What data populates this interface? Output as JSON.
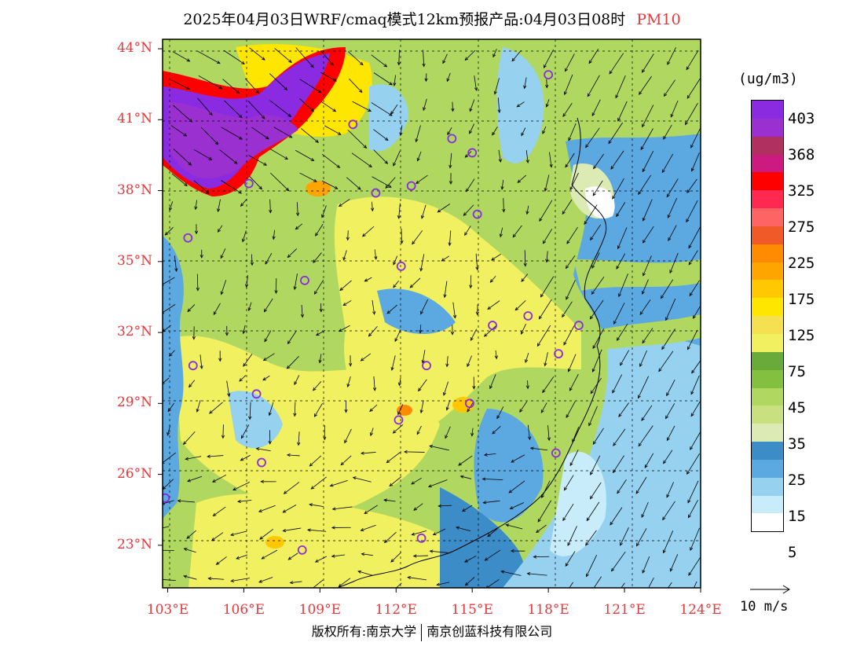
{
  "title": {
    "main": "2025年04月03日WRF/cmaq模式12km预报产品:04月03日08时",
    "pollutant": "PM10"
  },
  "lat_ticks": [
    {
      "value": 44,
      "label": "44°N"
    },
    {
      "value": 41,
      "label": "41°N"
    },
    {
      "value": 38,
      "label": "38°N"
    },
    {
      "value": 35,
      "label": "35°N"
    },
    {
      "value": 32,
      "label": "32°N"
    },
    {
      "value": 29,
      "label": "29°N"
    },
    {
      "value": 26,
      "label": "26°N"
    },
    {
      "value": 23,
      "label": "23°N"
    }
  ],
  "lon_ticks": [
    {
      "value": 103,
      "label": "103°E"
    },
    {
      "value": 106,
      "label": "106°E"
    },
    {
      "value": 109,
      "label": "109°E"
    },
    {
      "value": 112,
      "label": "112°E"
    },
    {
      "value": 115,
      "label": "115°E"
    },
    {
      "value": 118,
      "label": "118°E"
    },
    {
      "value": 121,
      "label": "121°E"
    },
    {
      "value": 124,
      "label": "124°E"
    }
  ],
  "extent": {
    "lon_min": 102.8,
    "lon_max": 124.0,
    "lat_min": 21.2,
    "lat_max": 44.4
  },
  "legend": {
    "units": "(ug/m3)",
    "colors": [
      "#8a2be2",
      "#9b30d0",
      "#b03060",
      "#cc1a80",
      "#ff0000",
      "#ff2850",
      "#ff6464",
      "#f05a28",
      "#ff8c00",
      "#ffa500",
      "#ffc800",
      "#ffe600",
      "#f5e050",
      "#f0f060",
      "#6aaa3a",
      "#84c040",
      "#b0d860",
      "#c8e080",
      "#dceab4",
      "#3c8cc8",
      "#5ca8e0",
      "#96d2f0",
      "#c8ecfa",
      "#ffffff"
    ],
    "labels": [
      "403",
      "368",
      "325",
      "275",
      "225",
      "175",
      "125",
      "75",
      "45",
      "35",
      "25",
      "15",
      "5"
    ]
  },
  "vector_reference": {
    "label": "10 m/s"
  },
  "cities": [
    {
      "lon": 118.0,
      "lat": 42.9
    },
    {
      "lon": 110.3,
      "lat": 40.8
    },
    {
      "lon": 114.2,
      "lat": 40.2
    },
    {
      "lon": 115.0,
      "lat": 39.6
    },
    {
      "lon": 106.2,
      "lat": 38.3
    },
    {
      "lon": 111.2,
      "lat": 37.9
    },
    {
      "lon": 112.6,
      "lat": 38.2
    },
    {
      "lon": 115.2,
      "lat": 37.0
    },
    {
      "lon": 103.8,
      "lat": 36.0
    },
    {
      "lon": 112.2,
      "lat": 34.8
    },
    {
      "lon": 108.4,
      "lat": 34.2
    },
    {
      "lon": 117.2,
      "lat": 32.7
    },
    {
      "lon": 115.8,
      "lat": 32.3
    },
    {
      "lon": 119.2,
      "lat": 32.3
    },
    {
      "lon": 118.4,
      "lat": 31.1
    },
    {
      "lon": 104.0,
      "lat": 30.6
    },
    {
      "lon": 113.2,
      "lat": 30.6
    },
    {
      "lon": 106.5,
      "lat": 29.4
    },
    {
      "lon": 114.9,
      "lat": 29.0
    },
    {
      "lon": 112.1,
      "lat": 28.3
    },
    {
      "lon": 106.7,
      "lat": 26.5
    },
    {
      "lon": 118.3,
      "lat": 26.9
    },
    {
      "lon": 102.9,
      "lat": 25.0
    },
    {
      "lon": 113.0,
      "lat": 23.3
    },
    {
      "lon": 108.3,
      "lat": 22.8
    }
  ],
  "footer": {
    "left": "版权所有:南京大学",
    "right": "南京创蓝科技有限公司"
  }
}
